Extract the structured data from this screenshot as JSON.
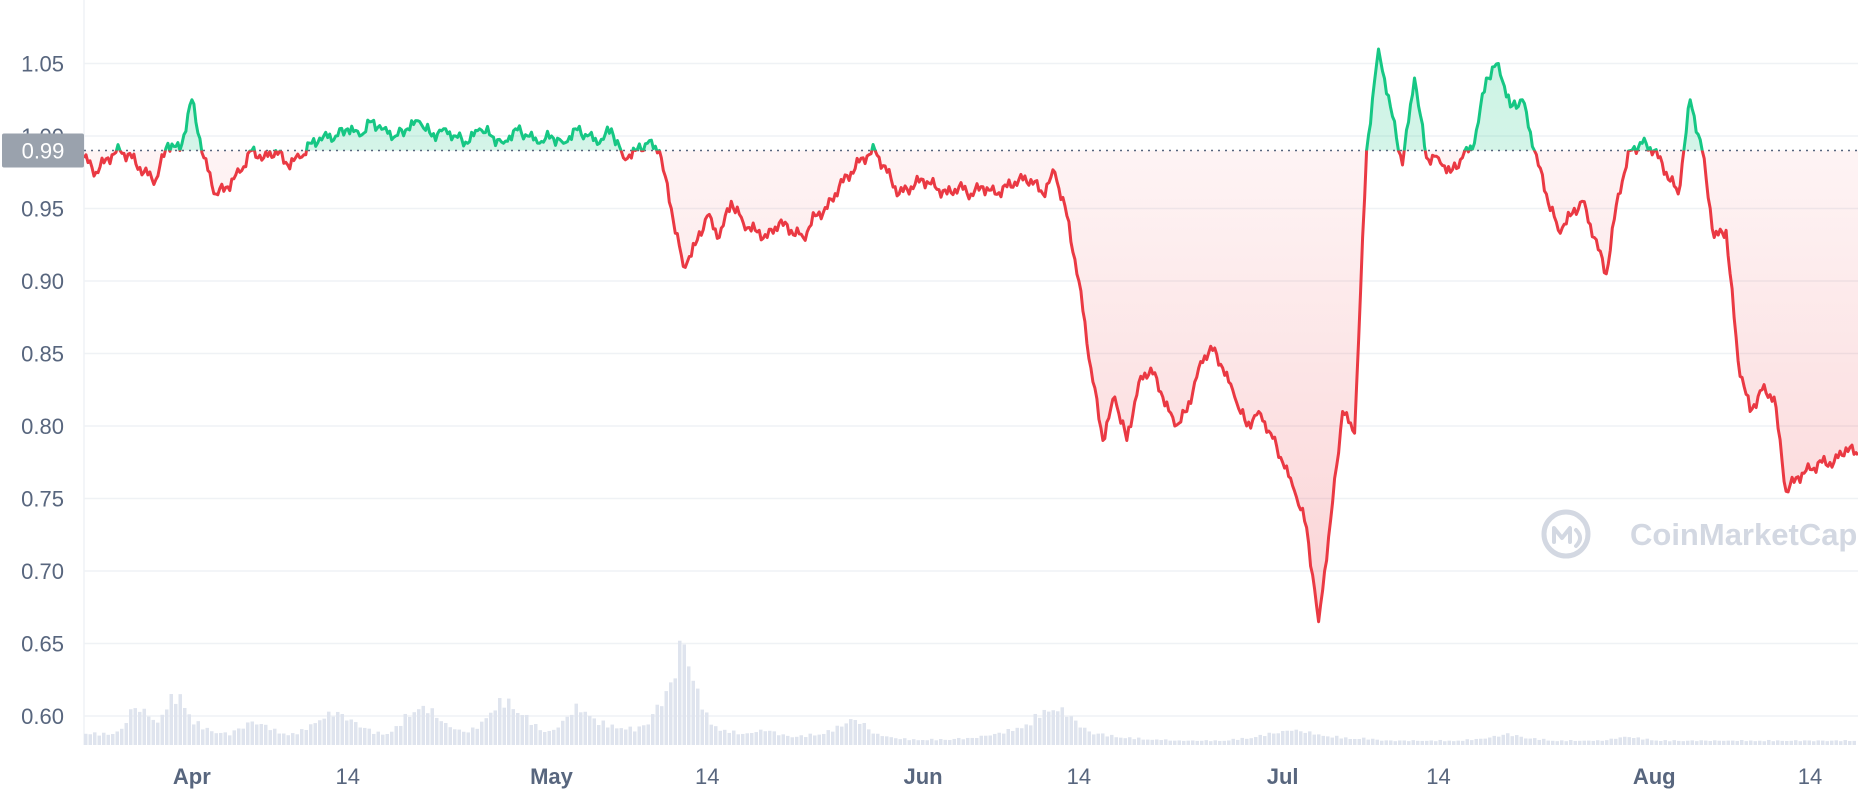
{
  "watermark": "CoinMarketCap",
  "colors": {
    "up": "#16c784",
    "down": "#ea3943",
    "grid": "#eff2f5",
    "volume": "#dfe4ee",
    "baseline_badge": "#9aa2ad"
  },
  "chart_data": {
    "type": "line",
    "title": "",
    "xlabel": "",
    "ylabel": "",
    "baseline": 0.99,
    "baseline_label": "0.99",
    "ylim": [
      0.58,
      1.08
    ],
    "yticks": [
      0.6,
      0.65,
      0.7,
      0.75,
      0.8,
      0.85,
      0.9,
      0.95,
      1.0,
      1.05
    ],
    "ytick_labels": [
      "0.60",
      "0.65",
      "0.70",
      "0.75",
      "0.80",
      "0.85",
      "0.90",
      "0.95",
      "1.00",
      "1.05"
    ],
    "xlim": [
      "2022-03-23",
      "2022-08-18"
    ],
    "xticks": [
      {
        "date": "2022-04-01",
        "label": "Apr",
        "major": true
      },
      {
        "date": "2022-04-14",
        "label": "14",
        "major": false
      },
      {
        "date": "2022-05-01",
        "label": "May",
        "major": true
      },
      {
        "date": "2022-05-14",
        "label": "14",
        "major": false
      },
      {
        "date": "2022-06-01",
        "label": "Jun",
        "major": true
      },
      {
        "date": "2022-06-14",
        "label": "14",
        "major": false
      },
      {
        "date": "2022-07-01",
        "label": "Jul",
        "major": true
      },
      {
        "date": "2022-07-14",
        "label": "14",
        "major": false
      },
      {
        "date": "2022-08-01",
        "label": "Aug",
        "major": true
      },
      {
        "date": "2022-08-14",
        "label": "14",
        "major": false
      }
    ],
    "price_series": {
      "name": "",
      "points": [
        [
          "2022-03-23",
          0.985
        ],
        [
          "2022-03-24",
          0.975
        ],
        [
          "2022-03-25",
          0.985
        ],
        [
          "2022-03-26",
          0.99
        ],
        [
          "2022-03-27",
          0.985
        ],
        [
          "2022-03-28",
          0.975
        ],
        [
          "2022-03-29",
          0.97
        ],
        [
          "2022-03-30",
          0.995
        ],
        [
          "2022-03-31",
          0.99
        ],
        [
          "2022-04-01",
          1.025
        ],
        [
          "2022-04-02",
          0.985
        ],
        [
          "2022-04-03",
          0.96
        ],
        [
          "2022-04-04",
          0.965
        ],
        [
          "2022-04-05",
          0.975
        ],
        [
          "2022-04-06",
          0.99
        ],
        [
          "2022-04-07",
          0.985
        ],
        [
          "2022-04-08",
          0.99
        ],
        [
          "2022-04-09",
          0.98
        ],
        [
          "2022-04-10",
          0.985
        ],
        [
          "2022-04-11",
          0.995
        ],
        [
          "2022-04-12",
          1.0
        ],
        [
          "2022-04-13",
          1.0
        ],
        [
          "2022-04-14",
          1.005
        ],
        [
          "2022-04-15",
          1.0
        ],
        [
          "2022-04-16",
          1.01
        ],
        [
          "2022-04-17",
          1.005
        ],
        [
          "2022-04-18",
          1.0
        ],
        [
          "2022-04-19",
          1.005
        ],
        [
          "2022-04-20",
          1.01
        ],
        [
          "2022-04-21",
          1.0
        ],
        [
          "2022-04-22",
          1.005
        ],
        [
          "2022-04-23",
          1.0
        ],
        [
          "2022-04-24",
          0.995
        ],
        [
          "2022-04-25",
          1.005
        ],
        [
          "2022-04-26",
          1.0
        ],
        [
          "2022-04-27",
          0.995
        ],
        [
          "2022-04-28",
          1.005
        ],
        [
          "2022-04-29",
          1.0
        ],
        [
          "2022-04-30",
          0.995
        ],
        [
          "2022-05-01",
          1.0
        ],
        [
          "2022-05-02",
          0.995
        ],
        [
          "2022-05-03",
          1.005
        ],
        [
          "2022-05-04",
          1.0
        ],
        [
          "2022-05-05",
          0.995
        ],
        [
          "2022-05-06",
          1.005
        ],
        [
          "2022-05-07",
          0.985
        ],
        [
          "2022-05-08",
          0.99
        ],
        [
          "2022-05-09",
          0.995
        ],
        [
          "2022-05-10",
          0.99
        ],
        [
          "2022-05-11",
          0.95
        ],
        [
          "2022-05-12",
          0.91
        ],
        [
          "2022-05-13",
          0.925
        ],
        [
          "2022-05-14",
          0.945
        ],
        [
          "2022-05-15",
          0.93
        ],
        [
          "2022-05-16",
          0.955
        ],
        [
          "2022-05-17",
          0.94
        ],
        [
          "2022-05-18",
          0.935
        ],
        [
          "2022-05-19",
          0.93
        ],
        [
          "2022-05-20",
          0.94
        ],
        [
          "2022-05-21",
          0.935
        ],
        [
          "2022-05-22",
          0.93
        ],
        [
          "2022-05-23",
          0.945
        ],
        [
          "2022-05-24",
          0.95
        ],
        [
          "2022-05-25",
          0.965
        ],
        [
          "2022-05-26",
          0.975
        ],
        [
          "2022-05-27",
          0.985
        ],
        [
          "2022-05-28",
          0.99
        ],
        [
          "2022-05-29",
          0.975
        ],
        [
          "2022-05-30",
          0.96
        ],
        [
          "2022-05-31",
          0.965
        ],
        [
          "2022-06-01",
          0.97
        ],
        [
          "2022-06-02",
          0.965
        ],
        [
          "2022-06-03",
          0.96
        ],
        [
          "2022-06-04",
          0.965
        ],
        [
          "2022-06-05",
          0.96
        ],
        [
          "2022-06-06",
          0.965
        ],
        [
          "2022-06-07",
          0.96
        ],
        [
          "2022-06-08",
          0.965
        ],
        [
          "2022-06-09",
          0.97
        ],
        [
          "2022-06-10",
          0.97
        ],
        [
          "2022-06-11",
          0.96
        ],
        [
          "2022-06-12",
          0.975
        ],
        [
          "2022-06-13",
          0.945
        ],
        [
          "2022-06-14",
          0.9
        ],
        [
          "2022-06-15",
          0.84
        ],
        [
          "2022-06-16",
          0.79
        ],
        [
          "2022-06-17",
          0.82
        ],
        [
          "2022-06-18",
          0.79
        ],
        [
          "2022-06-19",
          0.83
        ],
        [
          "2022-06-20",
          0.84
        ],
        [
          "2022-06-21",
          0.82
        ],
        [
          "2022-06-22",
          0.8
        ],
        [
          "2022-06-23",
          0.81
        ],
        [
          "2022-06-24",
          0.84
        ],
        [
          "2022-06-25",
          0.855
        ],
        [
          "2022-06-26",
          0.84
        ],
        [
          "2022-06-27",
          0.82
        ],
        [
          "2022-06-28",
          0.8
        ],
        [
          "2022-06-29",
          0.81
        ],
        [
          "2022-06-30",
          0.795
        ],
        [
          "2022-07-01",
          0.775
        ],
        [
          "2022-07-02",
          0.755
        ],
        [
          "2022-07-03",
          0.73
        ],
        [
          "2022-07-04",
          0.665
        ],
        [
          "2022-07-05",
          0.735
        ],
        [
          "2022-07-06",
          0.81
        ],
        [
          "2022-07-07",
          0.795
        ],
        [
          "2022-07-08",
          0.99
        ],
        [
          "2022-07-09",
          1.06
        ],
        [
          "2022-07-10",
          1.02
        ],
        [
          "2022-07-11",
          0.98
        ],
        [
          "2022-07-12",
          1.04
        ],
        [
          "2022-07-13",
          0.985
        ],
        [
          "2022-07-14",
          0.985
        ],
        [
          "2022-07-15",
          0.975
        ],
        [
          "2022-07-16",
          0.985
        ],
        [
          "2022-07-17",
          0.995
        ],
        [
          "2022-07-18",
          1.04
        ],
        [
          "2022-07-19",
          1.05
        ],
        [
          "2022-07-20",
          1.02
        ],
        [
          "2022-07-21",
          1.025
        ],
        [
          "2022-07-22",
          0.99
        ],
        [
          "2022-07-23",
          0.96
        ],
        [
          "2022-07-24",
          0.935
        ],
        [
          "2022-07-25",
          0.945
        ],
        [
          "2022-07-26",
          0.955
        ],
        [
          "2022-07-27",
          0.93
        ],
        [
          "2022-07-28",
          0.905
        ],
        [
          "2022-07-29",
          0.96
        ],
        [
          "2022-07-30",
          0.99
        ],
        [
          "2022-07-31",
          0.995
        ],
        [
          "2022-08-01",
          0.99
        ],
        [
          "2022-08-02",
          0.975
        ],
        [
          "2022-08-03",
          0.96
        ],
        [
          "2022-08-04",
          1.025
        ],
        [
          "2022-08-05",
          0.99
        ],
        [
          "2022-08-06",
          0.93
        ],
        [
          "2022-08-07",
          0.935
        ],
        [
          "2022-08-08",
          0.845
        ],
        [
          "2022-08-09",
          0.81
        ],
        [
          "2022-08-10",
          0.825
        ],
        [
          "2022-08-11",
          0.82
        ],
        [
          "2022-08-12",
          0.755
        ],
        [
          "2022-08-13",
          0.765
        ],
        [
          "2022-08-14",
          0.77
        ],
        [
          "2022-08-15",
          0.775
        ],
        [
          "2022-08-16",
          0.775
        ],
        [
          "2022-08-17",
          0.785
        ],
        [
          "2022-08-18",
          0.78
        ]
      ]
    },
    "volume_series": {
      "name": "",
      "unit": "relative",
      "values": [
        0.12,
        0.1,
        0.1,
        0.14,
        0.35,
        0.3,
        0.2,
        0.4,
        0.45,
        0.22,
        0.15,
        0.12,
        0.1,
        0.16,
        0.22,
        0.18,
        0.12,
        0.1,
        0.12,
        0.2,
        0.26,
        0.3,
        0.24,
        0.18,
        0.12,
        0.1,
        0.16,
        0.28,
        0.36,
        0.3,
        0.2,
        0.14,
        0.12,
        0.18,
        0.34,
        0.4,
        0.36,
        0.24,
        0.14,
        0.12,
        0.22,
        0.34,
        0.3,
        0.2,
        0.18,
        0.16,
        0.14,
        0.2,
        0.38,
        0.55,
        1.0,
        0.55,
        0.25,
        0.15,
        0.12,
        0.1,
        0.12,
        0.14,
        0.1,
        0.08,
        0.08,
        0.1,
        0.12,
        0.16,
        0.24,
        0.2,
        0.1,
        0.08,
        0.06,
        0.05,
        0.05,
        0.05,
        0.05,
        0.06,
        0.06,
        0.08,
        0.1,
        0.12,
        0.16,
        0.2,
        0.3,
        0.34,
        0.3,
        0.2,
        0.12,
        0.1,
        0.08,
        0.07,
        0.06,
        0.05,
        0.05,
        0.04,
        0.04,
        0.04,
        0.04,
        0.04,
        0.05,
        0.06,
        0.08,
        0.1,
        0.12,
        0.14,
        0.12,
        0.1,
        0.08,
        0.07,
        0.06,
        0.06,
        0.05,
        0.04,
        0.04,
        0.04,
        0.04,
        0.04,
        0.04,
        0.04,
        0.05,
        0.06,
        0.08,
        0.1,
        0.08,
        0.06,
        0.05,
        0.04,
        0.04,
        0.04,
        0.04,
        0.04,
        0.06,
        0.08,
        0.06,
        0.05,
        0.04,
        0.04,
        0.04,
        0.04,
        0.04,
        0.04,
        0.04,
        0.04,
        0.04,
        0.04,
        0.04,
        0.04,
        0.04,
        0.04,
        0.04,
        0.04,
        0.04
      ]
    }
  }
}
